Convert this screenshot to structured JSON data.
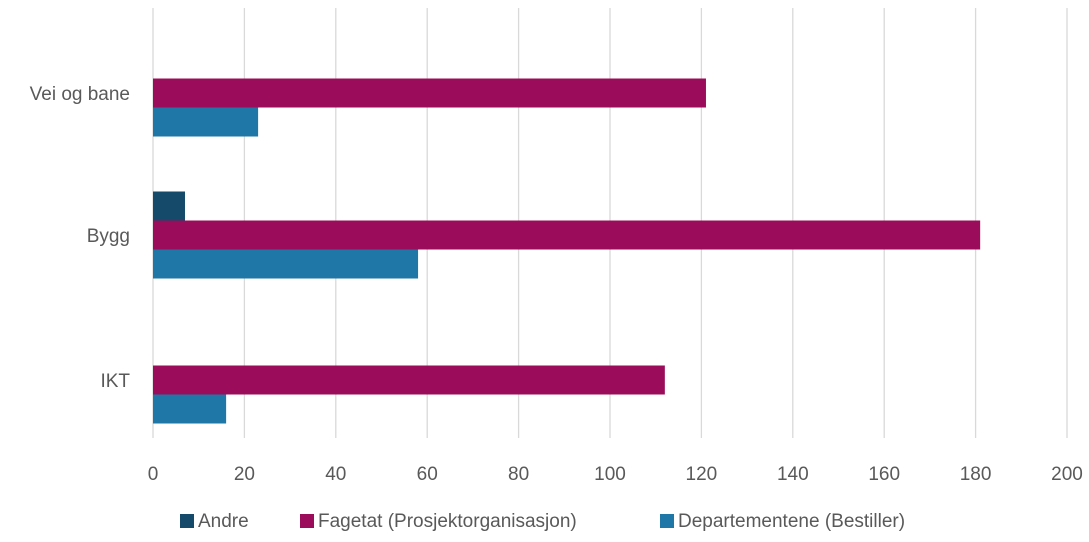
{
  "chart_data": {
    "type": "bar",
    "orientation": "horizontal",
    "categories": [
      "Vei og bane",
      "Bygg",
      "IKT"
    ],
    "series": [
      {
        "name": "Andre",
        "values": [
          0,
          7,
          0
        ],
        "color": "#154a6b"
      },
      {
        "name": "Fagetat (Prosjektorganisasjon)",
        "values": [
          121,
          181,
          112
        ],
        "color": "#9b0d5a"
      },
      {
        "name": "Departementene (Bestiller)",
        "values": [
          23,
          58,
          16
        ],
        "color": "#1e77a6"
      }
    ],
    "x_ticks": [
      "0",
      "20",
      "40",
      "60",
      "80",
      "100",
      "120",
      "140",
      "160",
      "180",
      "200"
    ],
    "xlim": [
      0,
      200
    ],
    "grid": "vertical",
    "legend_position": "bottom",
    "title": "",
    "xlabel": "",
    "ylabel": ""
  }
}
